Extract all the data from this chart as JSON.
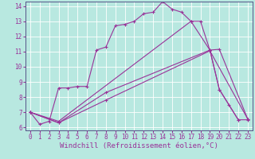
{
  "xlabel": "Windchill (Refroidissement éolien,°C)",
  "bg_color": "#b8e8e0",
  "line_color": "#993399",
  "grid_color": "#ffffff",
  "xlim": [
    -0.5,
    23.5
  ],
  "ylim": [
    5.8,
    14.3
  ],
  "xticks": [
    0,
    1,
    2,
    3,
    4,
    5,
    6,
    7,
    8,
    9,
    10,
    11,
    12,
    13,
    14,
    15,
    16,
    17,
    18,
    19,
    20,
    21,
    22,
    23
  ],
  "yticks": [
    6,
    7,
    8,
    9,
    10,
    11,
    12,
    13,
    14
  ],
  "line1_x": [
    0,
    1,
    2,
    3,
    4,
    5,
    6,
    7,
    8,
    9,
    10,
    11,
    12,
    13,
    14,
    15,
    16,
    17,
    18,
    19,
    20,
    21,
    22
  ],
  "line1_y": [
    7.0,
    6.2,
    6.4,
    8.6,
    8.6,
    8.7,
    8.7,
    11.1,
    11.3,
    12.7,
    12.8,
    13.0,
    13.5,
    13.6,
    14.3,
    13.8,
    13.6,
    13.0,
    13.0,
    11.1,
    8.5,
    7.5,
    6.5
  ],
  "line2_x": [
    0,
    3,
    17,
    19,
    20,
    22,
    23
  ],
  "line2_y": [
    7.0,
    6.4,
    13.0,
    11.1,
    8.5,
    6.5,
    6.5
  ],
  "line3_x": [
    0,
    3,
    8,
    19,
    20,
    23
  ],
  "line3_y": [
    7.0,
    6.3,
    8.3,
    11.1,
    11.15,
    6.55
  ],
  "line4_x": [
    0,
    3,
    8,
    19,
    23
  ],
  "line4_y": [
    7.0,
    6.3,
    7.8,
    11.05,
    6.55
  ],
  "title_fontsize": 6.5,
  "xlabel_fontsize": 6.5,
  "tick_fontsize": 5.5
}
